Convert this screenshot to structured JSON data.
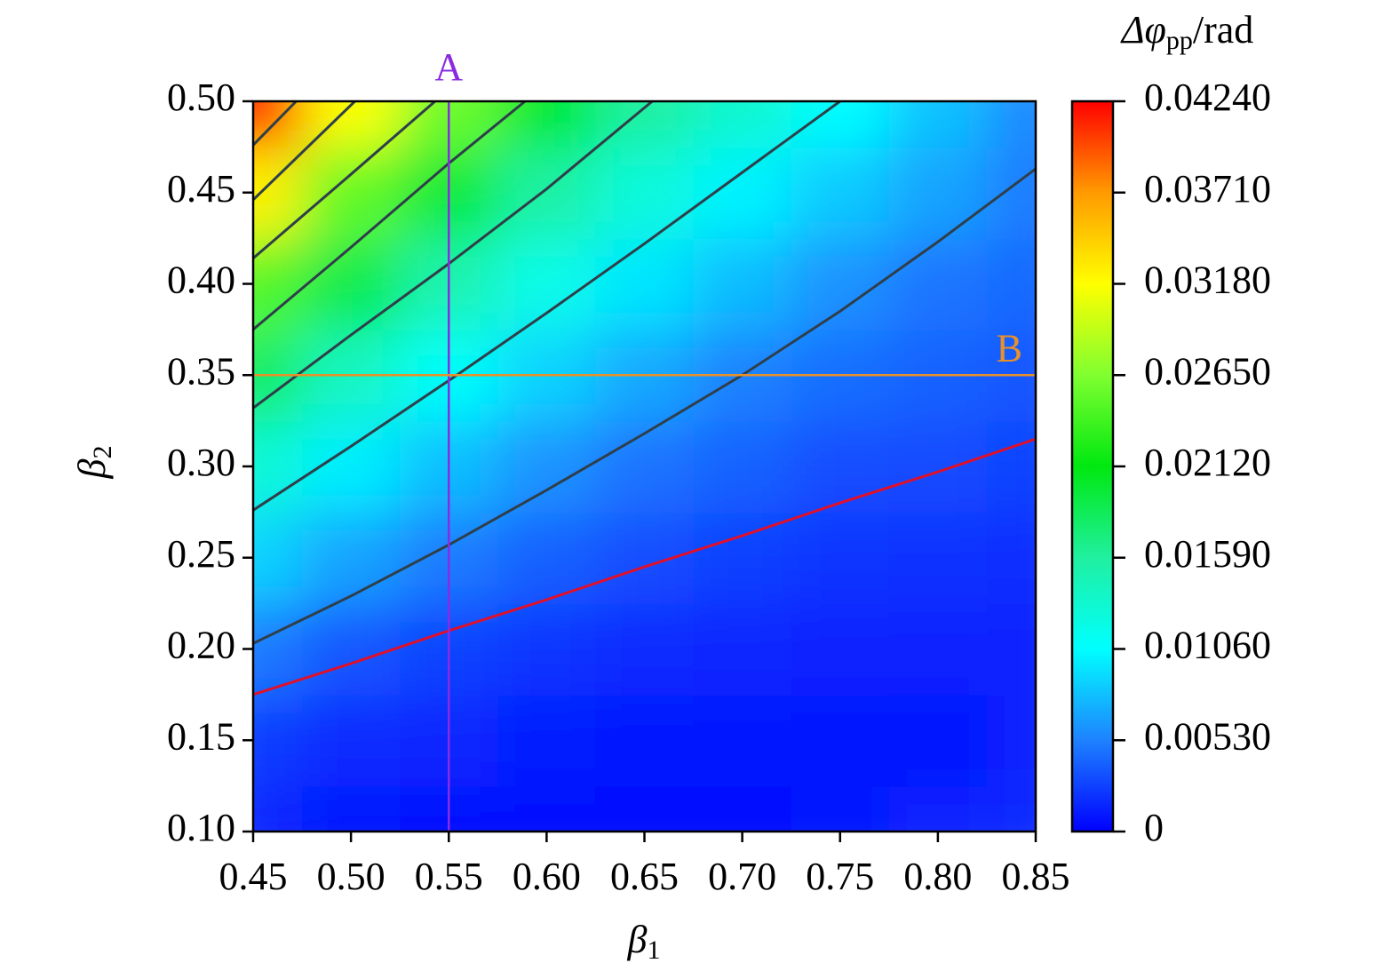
{
  "chart_data": {
    "type": "contour",
    "x_label": {
      "symbol": "β",
      "sub": "1"
    },
    "y_label": {
      "symbol": "β",
      "sub": "2"
    },
    "colorbar_title": {
      "main": "Δφ",
      "sub": "pp",
      "unit": "/rad"
    },
    "xlim": [
      0.45,
      0.85
    ],
    "ylim": [
      0.1,
      0.5
    ],
    "xticks": [
      0.45,
      {
        "value": 0.5,
        "label": "0.50"
      },
      0.55,
      {
        "value": 0.6,
        "label": "0.60"
      },
      0.65,
      {
        "value": 0.7,
        "label": "0.70"
      },
      0.75,
      {
        "value": 0.8,
        "label": "0.80"
      },
      0.85
    ],
    "yticks": [
      {
        "value": 0.1,
        "label": "0.10"
      },
      0.15,
      {
        "value": 0.2,
        "label": "0.20"
      },
      0.25,
      {
        "value": 0.3,
        "label": "0.30"
      },
      0.35,
      {
        "value": 0.4,
        "label": "0.40"
      },
      0.45,
      {
        "value": 0.5,
        "label": "0.50"
      }
    ],
    "zlim": [
      0,
      0.0424
    ],
    "zticks": [
      0,
      {
        "value": 0.0053,
        "label": "0.00530"
      },
      {
        "value": 0.0106,
        "label": "0.01060"
      },
      {
        "value": 0.0159,
        "label": "0.01590"
      },
      {
        "value": 0.0212,
        "label": "0.02120"
      },
      {
        "value": 0.0265,
        "label": "0.02650"
      },
      {
        "value": 0.0318,
        "label": "0.03180"
      },
      {
        "value": 0.0371,
        "label": "0.03710"
      },
      {
        "value": 0.0424,
        "label": "0.04240"
      }
    ],
    "colormap": [
      "#0000ff",
      "#1e82ff",
      "#00ffff",
      "#20f0a0",
      "#00e810",
      "#80ff30",
      "#ffff00",
      "#ff9a00",
      "#ff0000"
    ],
    "zx": [
      0.45,
      0.5,
      0.55,
      0.6,
      0.65,
      0.7,
      0.75,
      0.8,
      0.85
    ],
    "zy": [
      0.1,
      0.15,
      0.2,
      0.25,
      0.3,
      0.35,
      0.4,
      0.45,
      0.5
    ],
    "z": [
      [
        0.0015,
        0.001,
        0.0007,
        0.0005,
        0.0004,
        0.0006,
        0.0009,
        0.0013,
        0.0017
      ],
      [
        0.0025,
        0.0018,
        0.0015,
        0.0011,
        0.0009,
        0.0009,
        0.0008,
        0.001,
        0.0013
      ],
      [
        0.005,
        0.0035,
        0.0027,
        0.0022,
        0.0018,
        0.0016,
        0.0014,
        0.0013,
        0.0014
      ],
      [
        0.0087,
        0.0067,
        0.005,
        0.0039,
        0.0032,
        0.0026,
        0.0022,
        0.002,
        0.0019
      ],
      [
        0.0129,
        0.0099,
        0.0078,
        0.006,
        0.0047,
        0.004,
        0.0032,
        0.0031,
        0.0027
      ],
      [
        0.0181,
        0.014,
        0.0108,
        0.0087,
        0.0069,
        0.0053,
        0.0045,
        0.004,
        0.0035
      ],
      [
        0.0246,
        0.019,
        0.015,
        0.0118,
        0.0095,
        0.0077,
        0.006,
        0.0048,
        0.0043
      ],
      [
        0.0325,
        0.0252,
        0.0197,
        0.0157,
        0.0126,
        0.0101,
        0.0083,
        0.0067,
        0.0051
      ],
      [
        0.0424,
        0.0318,
        0.0257,
        0.0203,
        0.016,
        0.0134,
        0.0106,
        0.008,
        0.0057
      ]
    ],
    "contours": [
      {
        "color": "#e0102a",
        "x": [
          0.45,
          0.5,
          0.55,
          0.6,
          0.65,
          0.7,
          0.75,
          0.8,
          0.85
        ],
        "y": [
          0.175,
          0.192,
          0.21,
          0.227,
          0.245,
          0.262,
          0.28,
          0.297,
          0.315
        ]
      },
      {
        "color": "#2f3f4a",
        "x": [
          0.45,
          0.5,
          0.55,
          0.6,
          0.65,
          0.7,
          0.75,
          0.8,
          0.85
        ],
        "y": [
          0.203,
          0.229,
          0.257,
          0.287,
          0.318,
          0.35,
          0.385,
          0.423,
          0.463
        ]
      },
      {
        "color": "#2f3f4a",
        "x": [
          0.45,
          0.5,
          0.55,
          0.6,
          0.65,
          0.7,
          0.75
        ],
        "y": [
          0.276,
          0.311,
          0.347,
          0.384,
          0.422,
          0.461,
          0.5
        ]
      },
      {
        "color": "#2f3f4a",
        "x": [
          0.45,
          0.5,
          0.55,
          0.6,
          0.654
        ],
        "y": [
          0.332,
          0.372,
          0.411,
          0.452,
          0.5
        ]
      },
      {
        "color": "#2f3f4a",
        "x": [
          0.45,
          0.5,
          0.55,
          0.589
        ],
        "y": [
          0.375,
          0.42,
          0.466,
          0.5
        ]
      },
      {
        "color": "#2f3f4a",
        "x": [
          0.45,
          0.5,
          0.543
        ],
        "y": [
          0.414,
          0.46,
          0.5
        ]
      },
      {
        "color": "#2f3f4a",
        "x": [
          0.45,
          0.502
        ],
        "y": [
          0.446,
          0.5
        ]
      },
      {
        "color": "#2f3f4a",
        "x": [
          0.45,
          0.472
        ],
        "y": [
          0.476,
          0.5
        ]
      }
    ],
    "markers": [
      {
        "text": "A",
        "x": 0.55,
        "color": "#8a2be2"
      },
      {
        "text": "B",
        "y": 0.35,
        "color": "#e8902a"
      }
    ]
  }
}
